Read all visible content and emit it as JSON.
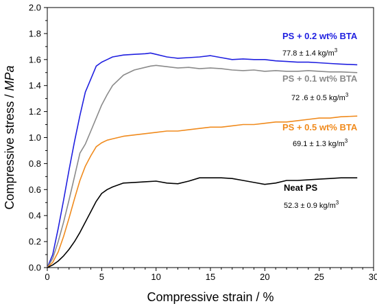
{
  "chart_data": {
    "type": "line",
    "xlabel": "Compressive strain / %",
    "ylabel_prefix": "Compressive stress / ",
    "ylabel_unit": "MPa",
    "xlim": [
      0,
      30
    ],
    "ylim": [
      0,
      2.0
    ],
    "x_ticks": [
      "0",
      "5",
      "10",
      "15",
      "20",
      "25",
      "30"
    ],
    "y_ticks": [
      "0.0",
      "0.2",
      "0.4",
      "0.6",
      "0.8",
      "1.0",
      "1.2",
      "1.4",
      "1.6",
      "1.8",
      "2.0"
    ],
    "grid": false,
    "series": [
      {
        "name": "PS + 0.2 wt% BTA",
        "color": "#1f1fe0",
        "density_text": "77.8 ± 1.4 kg/m",
        "density_sup": "3",
        "x": [
          0,
          0.5,
          1,
          1.5,
          2,
          2.5,
          3,
          3.5,
          4,
          4.5,
          5,
          5.5,
          6,
          7,
          8,
          9,
          9.5,
          10,
          11,
          12,
          13,
          14,
          15,
          16,
          17,
          18,
          19,
          20,
          21,
          22,
          23,
          24,
          25,
          26,
          27,
          28.5
        ],
        "y": [
          0,
          0.1,
          0.3,
          0.52,
          0.75,
          0.97,
          1.17,
          1.35,
          1.45,
          1.55,
          1.58,
          1.6,
          1.62,
          1.635,
          1.64,
          1.645,
          1.65,
          1.64,
          1.62,
          1.61,
          1.615,
          1.62,
          1.63,
          1.615,
          1.6,
          1.605,
          1.6,
          1.6,
          1.59,
          1.585,
          1.58,
          1.58,
          1.575,
          1.57,
          1.565,
          1.56
        ]
      },
      {
        "name": "PS + 0.1 wt% BTA",
        "color": "#8a8a8a",
        "density_text": "72 .6 ± 0.5 kg/m",
        "density_sup": "3",
        "x": [
          0,
          0.5,
          1,
          1.5,
          2,
          2.5,
          3,
          3.5,
          4,
          4.5,
          5,
          5.5,
          6,
          7,
          8,
          9,
          9.5,
          10,
          11,
          12,
          13,
          14,
          15,
          16,
          17,
          18,
          19,
          20,
          21,
          22,
          23,
          24,
          25,
          26,
          27,
          28.5
        ],
        "y": [
          0,
          0.07,
          0.2,
          0.35,
          0.52,
          0.7,
          0.88,
          0.95,
          1.05,
          1.15,
          1.25,
          1.33,
          1.4,
          1.48,
          1.52,
          1.54,
          1.55,
          1.555,
          1.545,
          1.535,
          1.54,
          1.53,
          1.535,
          1.53,
          1.52,
          1.515,
          1.52,
          1.51,
          1.515,
          1.51,
          1.51,
          1.515,
          1.51,
          1.505,
          1.505,
          1.5
        ]
      },
      {
        "name": "PS + 0.5 wt% BTA",
        "color": "#f08a1c",
        "density_text": "69.1 ± 1.3 kg/m",
        "density_sup": "3",
        "x": [
          0,
          0.5,
          1,
          1.5,
          2,
          2.5,
          3,
          3.5,
          4,
          4.5,
          5,
          5.5,
          6,
          7,
          8,
          9,
          10,
          11,
          12,
          13,
          14,
          15,
          16,
          17,
          18,
          19,
          20,
          21,
          22,
          23,
          24,
          25,
          26,
          27,
          28.5
        ],
        "y": [
          0,
          0.04,
          0.12,
          0.24,
          0.38,
          0.53,
          0.67,
          0.78,
          0.86,
          0.93,
          0.96,
          0.98,
          0.99,
          1.01,
          1.02,
          1.03,
          1.04,
          1.05,
          1.05,
          1.06,
          1.07,
          1.08,
          1.08,
          1.09,
          1.1,
          1.1,
          1.11,
          1.12,
          1.12,
          1.13,
          1.14,
          1.15,
          1.15,
          1.16,
          1.165
        ]
      },
      {
        "name": "Neat PS",
        "color": "#000000",
        "density_text": "52.3 ± 0.9 kg/m",
        "density_sup": "3",
        "x": [
          0,
          0.5,
          1,
          1.5,
          2,
          2.5,
          3,
          3.5,
          4,
          4.5,
          5,
          5.5,
          6,
          7,
          8,
          9,
          10,
          11,
          12,
          13,
          14,
          15,
          16,
          17,
          18,
          19,
          20,
          21,
          22,
          23,
          24,
          25,
          26,
          27,
          28.5
        ],
        "y": [
          0,
          0.02,
          0.05,
          0.09,
          0.14,
          0.2,
          0.27,
          0.35,
          0.43,
          0.51,
          0.57,
          0.6,
          0.62,
          0.65,
          0.655,
          0.66,
          0.665,
          0.65,
          0.645,
          0.665,
          0.69,
          0.69,
          0.69,
          0.685,
          0.67,
          0.655,
          0.64,
          0.65,
          0.67,
          0.67,
          0.675,
          0.68,
          0.685,
          0.69,
          0.69
        ]
      }
    ]
  }
}
